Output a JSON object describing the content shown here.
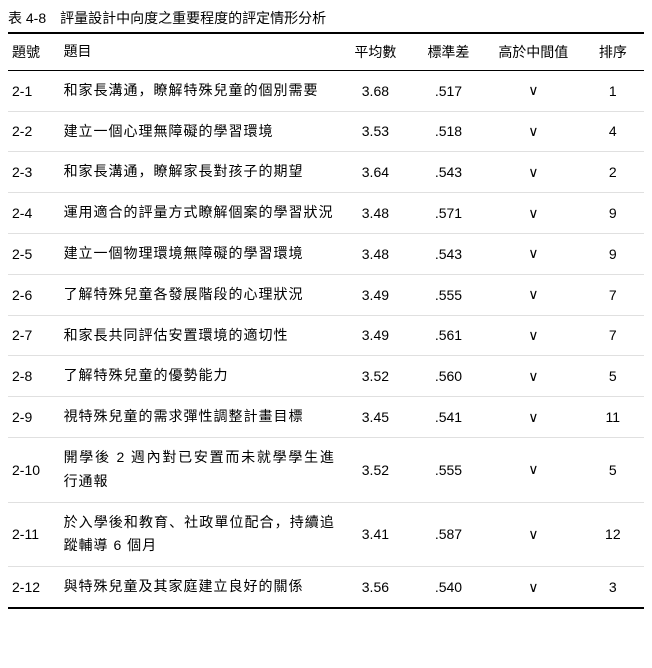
{
  "caption": "表 4-8　評量設計中向度之重要程度的評定情形分析",
  "headers": {
    "id": "題號",
    "item": "題目",
    "mean": "平均數",
    "sd": "標準差",
    "above": "高於中間值",
    "rank": "排序"
  },
  "check_symbol": "∨",
  "rows": [
    {
      "id": "2-1",
      "item": "和家長溝通，瞭解特殊兒童的個別需要",
      "mean": "3.68",
      "sd": ".517",
      "above": true,
      "rank": "1"
    },
    {
      "id": "2-2",
      "item": "建立一個心理無障礙的學習環境",
      "mean": "3.53",
      "sd": ".518",
      "above": true,
      "rank": "4"
    },
    {
      "id": "2-3",
      "item": "和家長溝通，瞭解家長對孩子的期望",
      "mean": "3.64",
      "sd": ".543",
      "above": true,
      "rank": "2"
    },
    {
      "id": "2-4",
      "item": "運用適合的評量方式瞭解個案的學習狀況",
      "mean": "3.48",
      "sd": ".571",
      "above": true,
      "rank": "9"
    },
    {
      "id": "2-5",
      "item": "建立一個物理環境無障礙的學習環境",
      "mean": "3.48",
      "sd": ".543",
      "above": true,
      "rank": "9"
    },
    {
      "id": "2-6",
      "item": "了解特殊兒童各發展階段的心理狀況",
      "mean": "3.49",
      "sd": ".555",
      "above": true,
      "rank": "7"
    },
    {
      "id": "2-7",
      "item": "和家長共同評估安置環境的適切性",
      "mean": "3.49",
      "sd": ".561",
      "above": true,
      "rank": "7"
    },
    {
      "id": "2-8",
      "item": "了解特殊兒童的優勢能力",
      "mean": "3.52",
      "sd": ".560",
      "above": true,
      "rank": "5"
    },
    {
      "id": "2-9",
      "item": "視特殊兒童的需求彈性調整計畫目標",
      "mean": "3.45",
      "sd": ".541",
      "above": true,
      "rank": "11"
    },
    {
      "id": "2-10",
      "item": "開學後 2 週內對已安置而未就學學生進行通報",
      "mean": "3.52",
      "sd": ".555",
      "above": true,
      "rank": "5"
    },
    {
      "id": "2-11",
      "item": "於入學後和教育、社政單位配合，持續追蹤輔導 6 個月",
      "mean": "3.41",
      "sd": ".587",
      "above": true,
      "rank": "12"
    },
    {
      "id": "2-12",
      "item": "與特殊兒童及其家庭建立良好的關係",
      "mean": "3.56",
      "sd": ".540",
      "above": true,
      "rank": "3"
    }
  ],
  "style": {
    "background_color": "#ffffff",
    "text_color": "#000000",
    "border_color": "#000000",
    "row_separator_color": "#e0e0e0",
    "font_size_body": 14,
    "font_family": "Microsoft JhengHei"
  }
}
